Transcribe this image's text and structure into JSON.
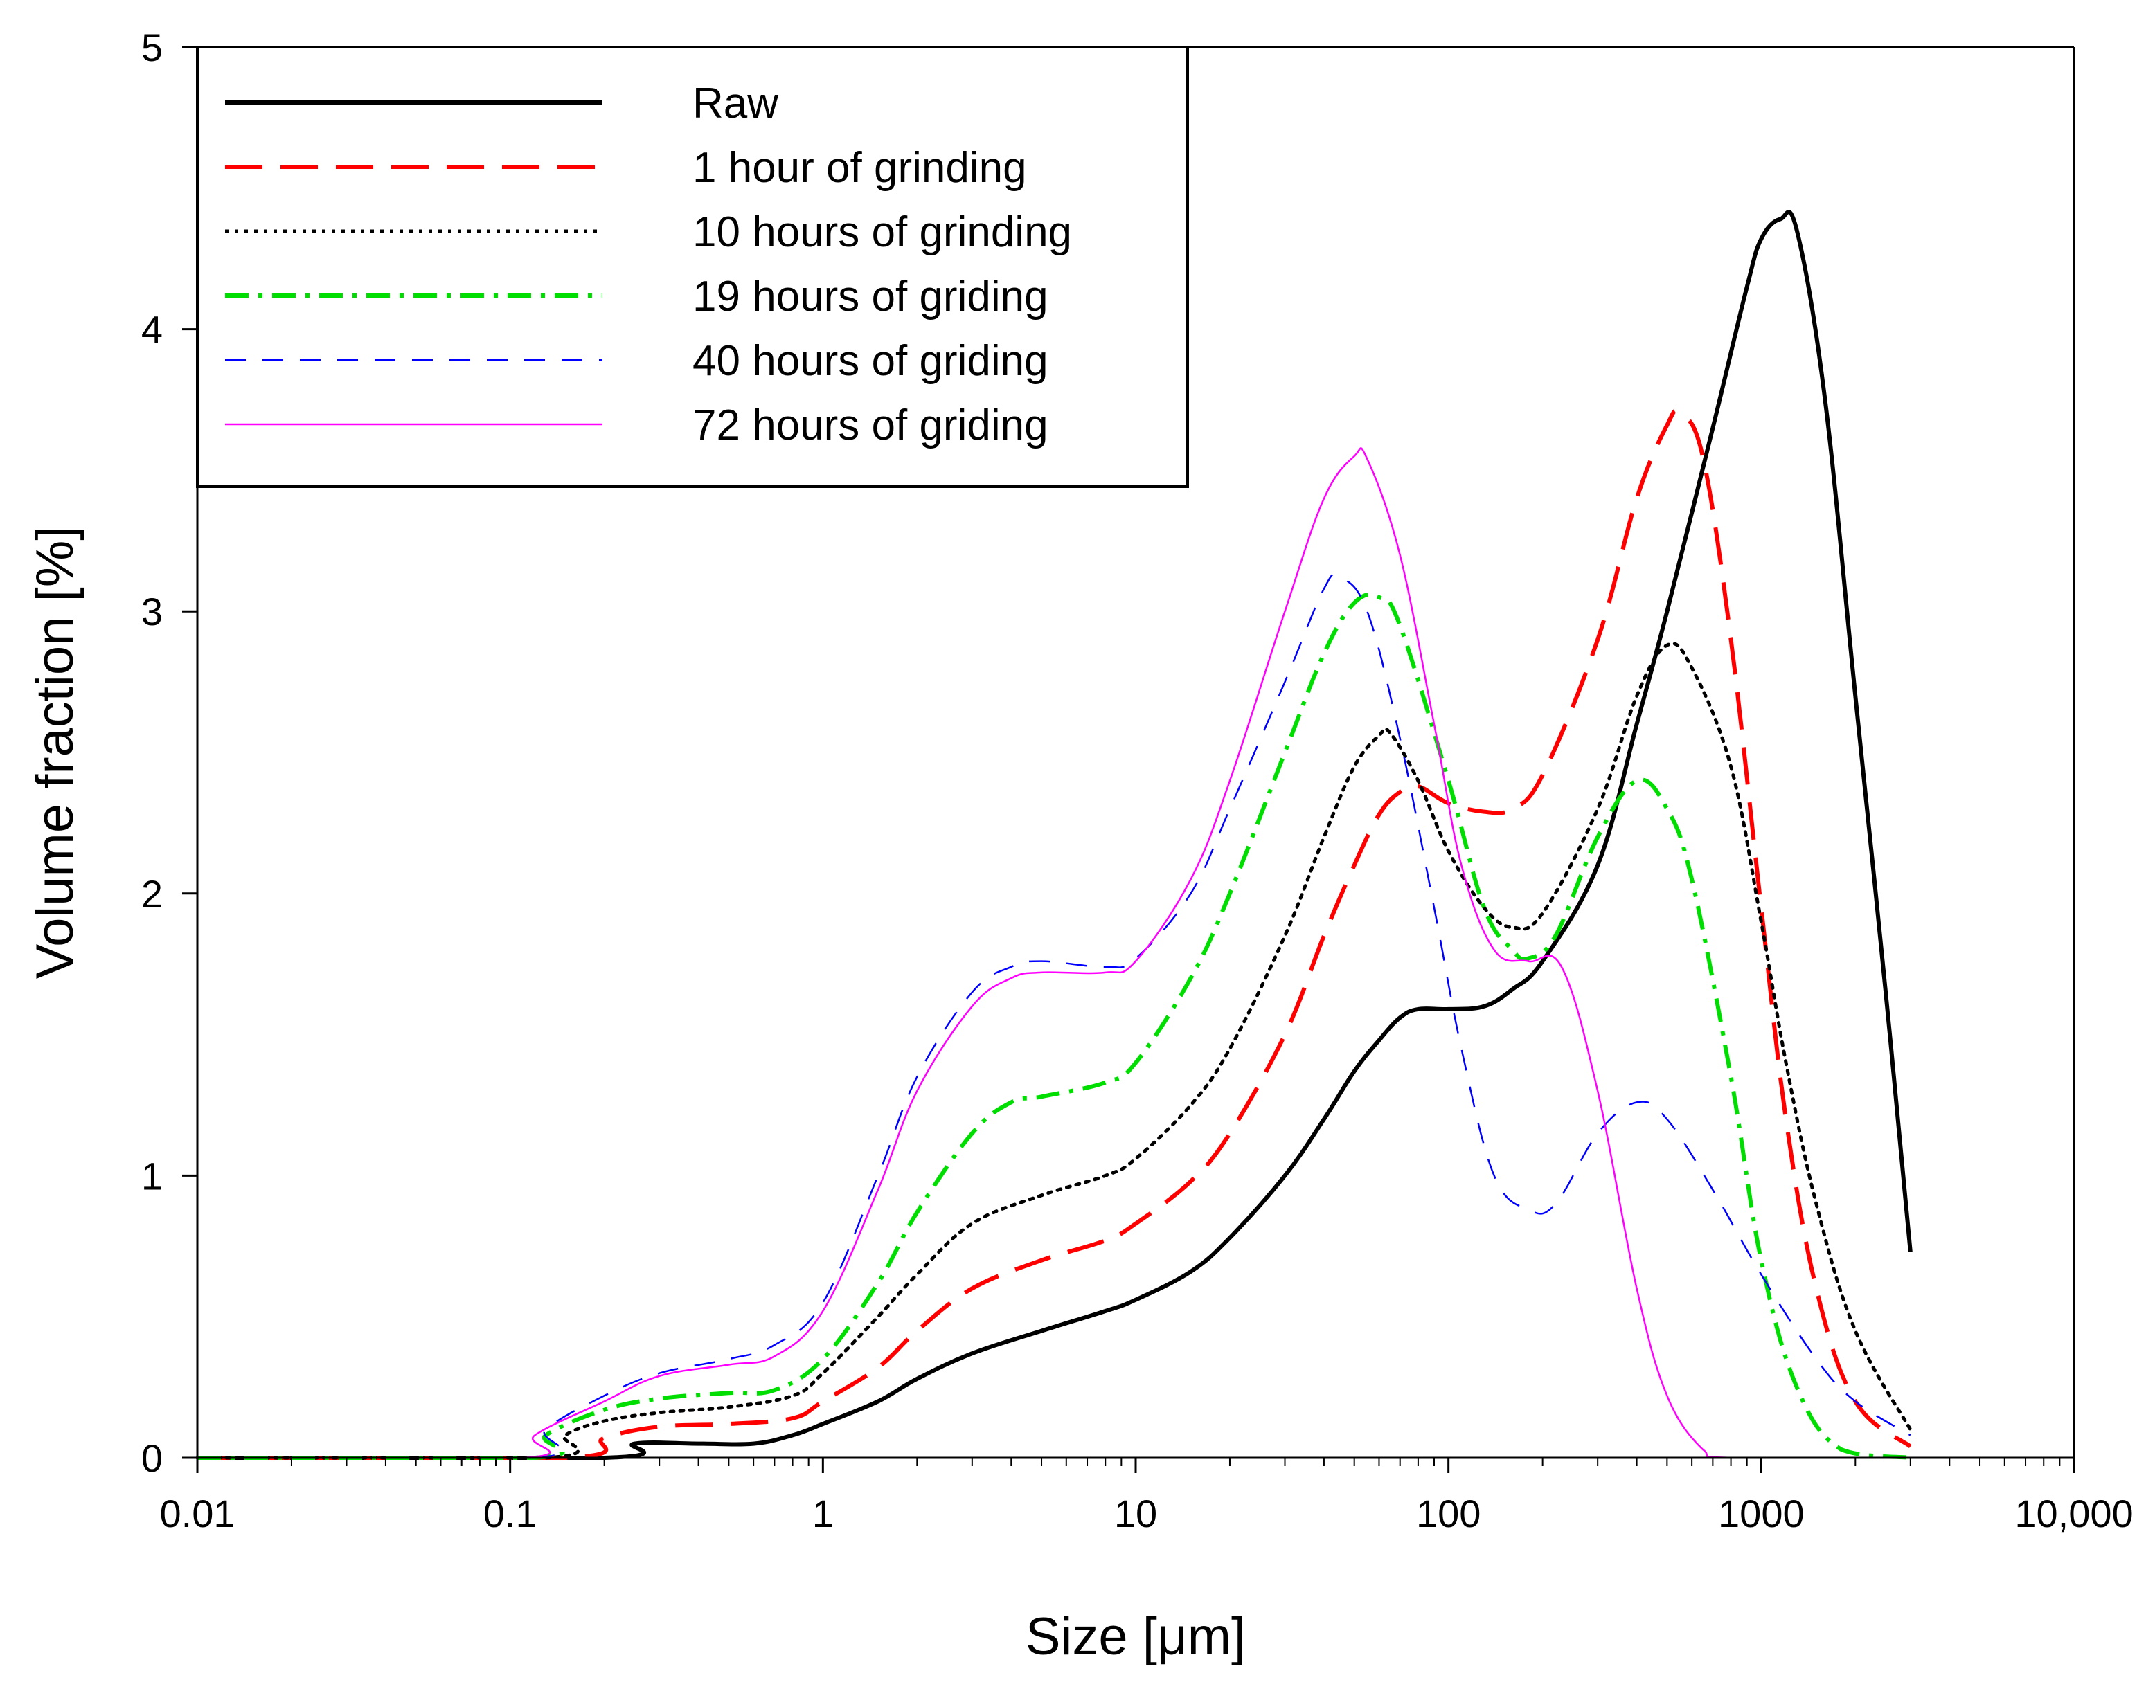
{
  "chart_data": {
    "type": "line",
    "title": "",
    "xlabel": "Size [μm]",
    "ylabel": "Volume fraction [%]",
    "xscale": "log",
    "xlim": [
      0.01,
      10000
    ],
    "ylim": [
      0,
      5
    ],
    "x_ticks": [
      0.01,
      0.1,
      1,
      10,
      100,
      1000,
      10000
    ],
    "x_tick_labels": [
      "0.01",
      "0.1",
      "1",
      "10",
      "100",
      "1000",
      "10,000"
    ],
    "y_ticks": [
      0,
      1,
      2,
      3,
      4,
      5
    ],
    "y_tick_labels": [
      "0",
      "1",
      "2",
      "3",
      "4",
      "5"
    ],
    "legend_position": "top-left",
    "series": [
      {
        "name": "Raw",
        "color": "#000000",
        "dash": "solid",
        "points": [
          [
            0.01,
            0
          ],
          [
            0.2,
            0
          ],
          [
            0.25,
            0.05
          ],
          [
            0.4,
            0.05
          ],
          [
            0.6,
            0.05
          ],
          [
            0.8,
            0.08
          ],
          [
            1,
            0.12
          ],
          [
            1.5,
            0.2
          ],
          [
            2,
            0.28
          ],
          [
            3,
            0.37
          ],
          [
            5,
            0.45
          ],
          [
            8,
            0.52
          ],
          [
            10,
            0.56
          ],
          [
            15,
            0.66
          ],
          [
            20,
            0.78
          ],
          [
            30,
            1.0
          ],
          [
            40,
            1.2
          ],
          [
            50,
            1.37
          ],
          [
            60,
            1.48
          ],
          [
            70,
            1.56
          ],
          [
            80,
            1.59
          ],
          [
            100,
            1.59
          ],
          [
            130,
            1.6
          ],
          [
            160,
            1.66
          ],
          [
            200,
            1.76
          ],
          [
            300,
            2.1
          ],
          [
            400,
            2.6
          ],
          [
            500,
            3.0
          ],
          [
            700,
            3.65
          ],
          [
            900,
            4.15
          ],
          [
            1000,
            4.32
          ],
          [
            1150,
            4.39
          ],
          [
            1300,
            4.35
          ],
          [
            1600,
            3.75
          ],
          [
            2000,
            2.7
          ],
          [
            2500,
            1.65
          ],
          [
            3000,
            0.73
          ]
        ]
      },
      {
        "name": "1 hour of grinding",
        "color": "#ff0000",
        "dash": "long-dash",
        "points": [
          [
            0.01,
            0
          ],
          [
            0.15,
            0
          ],
          [
            0.2,
            0.07
          ],
          [
            0.3,
            0.11
          ],
          [
            0.5,
            0.12
          ],
          [
            0.8,
            0.14
          ],
          [
            1,
            0.2
          ],
          [
            1.5,
            0.32
          ],
          [
            2,
            0.45
          ],
          [
            3,
            0.6
          ],
          [
            5,
            0.7
          ],
          [
            8,
            0.77
          ],
          [
            10,
            0.83
          ],
          [
            15,
            0.98
          ],
          [
            20,
            1.15
          ],
          [
            30,
            1.5
          ],
          [
            40,
            1.85
          ],
          [
            50,
            2.1
          ],
          [
            60,
            2.28
          ],
          [
            70,
            2.36
          ],
          [
            80,
            2.38
          ],
          [
            100,
            2.32
          ],
          [
            130,
            2.29
          ],
          [
            160,
            2.3
          ],
          [
            200,
            2.42
          ],
          [
            300,
            2.9
          ],
          [
            400,
            3.4
          ],
          [
            500,
            3.66
          ],
          [
            550,
            3.7
          ],
          [
            650,
            3.55
          ],
          [
            800,
            2.9
          ],
          [
            1000,
            1.95
          ],
          [
            1200,
            1.2
          ],
          [
            1500,
            0.6
          ],
          [
            2000,
            0.2
          ],
          [
            3000,
            0.04
          ]
        ]
      },
      {
        "name": "10 hours of grinding",
        "color": "#000000",
        "dash": "dotted",
        "points": [
          [
            0.01,
            0
          ],
          [
            0.13,
            0
          ],
          [
            0.15,
            0.08
          ],
          [
            0.2,
            0.13
          ],
          [
            0.3,
            0.16
          ],
          [
            0.5,
            0.18
          ],
          [
            0.8,
            0.22
          ],
          [
            1,
            0.3
          ],
          [
            1.5,
            0.5
          ],
          [
            2,
            0.65
          ],
          [
            3,
            0.83
          ],
          [
            5,
            0.93
          ],
          [
            8,
            1.0
          ],
          [
            10,
            1.06
          ],
          [
            15,
            1.25
          ],
          [
            20,
            1.45
          ],
          [
            30,
            1.85
          ],
          [
            40,
            2.2
          ],
          [
            50,
            2.45
          ],
          [
            60,
            2.56
          ],
          [
            65,
            2.57
          ],
          [
            80,
            2.4
          ],
          [
            100,
            2.15
          ],
          [
            130,
            1.95
          ],
          [
            160,
            1.88
          ],
          [
            200,
            1.93
          ],
          [
            300,
            2.3
          ],
          [
            400,
            2.7
          ],
          [
            500,
            2.88
          ],
          [
            600,
            2.8
          ],
          [
            800,
            2.45
          ],
          [
            1000,
            1.9
          ],
          [
            1200,
            1.4
          ],
          [
            1500,
            0.9
          ],
          [
            2000,
            0.45
          ],
          [
            3000,
            0.1
          ]
        ]
      },
      {
        "name": "19 hours of griding",
        "color": "#00dd00",
        "dash": "dash-dot",
        "points": [
          [
            0.01,
            0
          ],
          [
            0.12,
            0
          ],
          [
            0.13,
            0.08
          ],
          [
            0.2,
            0.17
          ],
          [
            0.3,
            0.21
          ],
          [
            0.5,
            0.23
          ],
          [
            0.7,
            0.24
          ],
          [
            1,
            0.35
          ],
          [
            1.5,
            0.62
          ],
          [
            2,
            0.87
          ],
          [
            3,
            1.15
          ],
          [
            4,
            1.26
          ],
          [
            5,
            1.28
          ],
          [
            8,
            1.33
          ],
          [
            10,
            1.4
          ],
          [
            15,
            1.7
          ],
          [
            20,
            2.0
          ],
          [
            30,
            2.5
          ],
          [
            40,
            2.85
          ],
          [
            50,
            3.03
          ],
          [
            60,
            3.05
          ],
          [
            70,
            2.95
          ],
          [
            100,
            2.4
          ],
          [
            130,
            1.95
          ],
          [
            160,
            1.8
          ],
          [
            180,
            1.77
          ],
          [
            220,
            1.85
          ],
          [
            300,
            2.2
          ],
          [
            400,
            2.4
          ],
          [
            500,
            2.3
          ],
          [
            600,
            2.05
          ],
          [
            800,
            1.35
          ],
          [
            1000,
            0.7
          ],
          [
            1300,
            0.25
          ],
          [
            1800,
            0.03
          ],
          [
            3000,
            0
          ]
        ]
      },
      {
        "name": "40 hours of griding",
        "color": "#0000ff",
        "dash": "short-dash",
        "points": [
          [
            0.01,
            0
          ],
          [
            0.12,
            0
          ],
          [
            0.13,
            0.1
          ],
          [
            0.2,
            0.22
          ],
          [
            0.3,
            0.3
          ],
          [
            0.5,
            0.35
          ],
          [
            0.7,
            0.4
          ],
          [
            1,
            0.55
          ],
          [
            1.5,
            1.0
          ],
          [
            2,
            1.35
          ],
          [
            3,
            1.65
          ],
          [
            4,
            1.74
          ],
          [
            5,
            1.76
          ],
          [
            8,
            1.74
          ],
          [
            10,
            1.77
          ],
          [
            15,
            2.0
          ],
          [
            20,
            2.3
          ],
          [
            30,
            2.75
          ],
          [
            40,
            3.08
          ],
          [
            45,
            3.12
          ],
          [
            55,
            3.0
          ],
          [
            70,
            2.55
          ],
          [
            90,
            1.95
          ],
          [
            110,
            1.45
          ],
          [
            140,
            1.0
          ],
          [
            180,
            0.88
          ],
          [
            220,
            0.9
          ],
          [
            300,
            1.15
          ],
          [
            400,
            1.26
          ],
          [
            500,
            1.2
          ],
          [
            700,
            0.95
          ],
          [
            1000,
            0.65
          ],
          [
            1500,
            0.35
          ],
          [
            2000,
            0.2
          ],
          [
            3000,
            0.08
          ]
        ]
      },
      {
        "name": "72 hours of griding",
        "color": "#ff00ff",
        "dash": "solid-thin",
        "points": [
          [
            0.01,
            0
          ],
          [
            0.11,
            0
          ],
          [
            0.12,
            0.08
          ],
          [
            0.2,
            0.2
          ],
          [
            0.3,
            0.29
          ],
          [
            0.5,
            0.33
          ],
          [
            0.7,
            0.36
          ],
          [
            1,
            0.52
          ],
          [
            1.5,
            0.95
          ],
          [
            2,
            1.3
          ],
          [
            3,
            1.6
          ],
          [
            4,
            1.7
          ],
          [
            5,
            1.72
          ],
          [
            8,
            1.72
          ],
          [
            10,
            1.76
          ],
          [
            15,
            2.05
          ],
          [
            20,
            2.4
          ],
          [
            30,
            3.0
          ],
          [
            40,
            3.4
          ],
          [
            50,
            3.55
          ],
          [
            55,
            3.54
          ],
          [
            70,
            3.2
          ],
          [
            90,
            2.6
          ],
          [
            110,
            2.1
          ],
          [
            140,
            1.8
          ],
          [
            180,
            1.76
          ],
          [
            230,
            1.74
          ],
          [
            300,
            1.3
          ],
          [
            400,
            0.6
          ],
          [
            500,
            0.22
          ],
          [
            650,
            0.03
          ],
          [
            800,
            0
          ],
          [
            3000,
            0
          ]
        ]
      }
    ]
  }
}
